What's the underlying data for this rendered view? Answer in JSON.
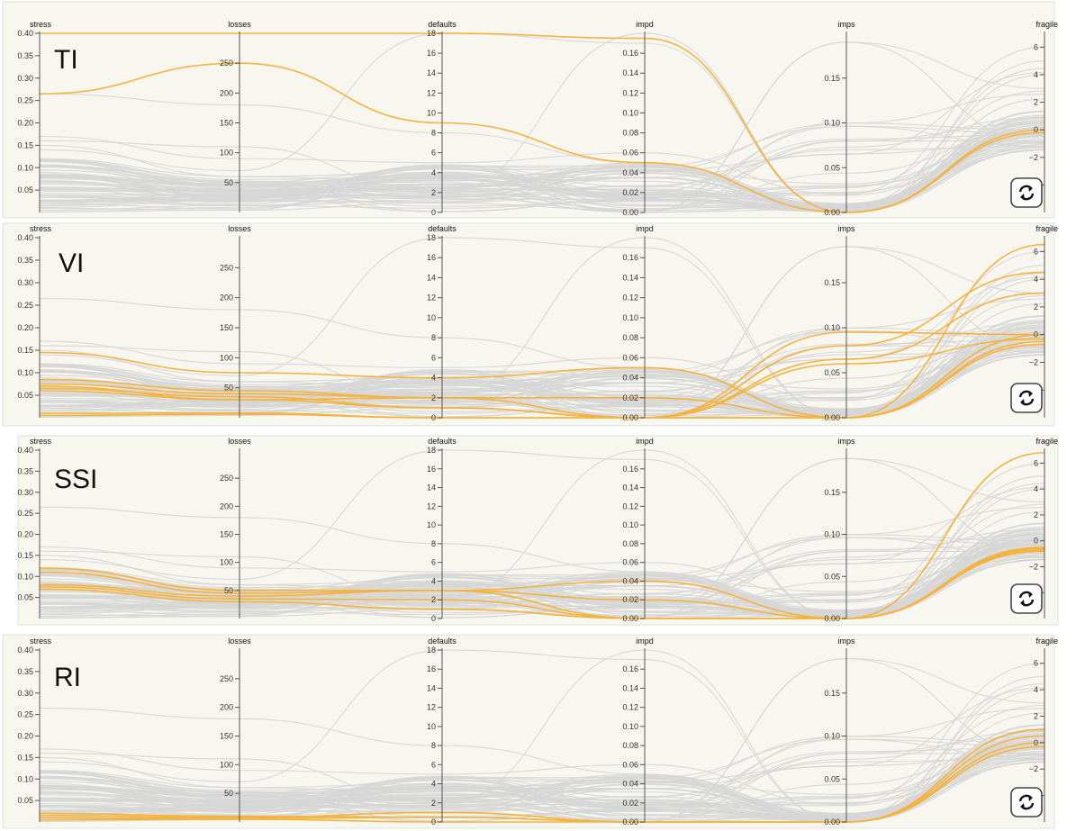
{
  "axes": {
    "stress": {
      "label": "stress",
      "domain": [
        0,
        0.4
      ],
      "ticks": [
        0.05,
        0.1,
        0.15,
        0.2,
        0.25,
        0.3,
        0.35,
        0.4
      ],
      "tick_labels": [
        "0.05",
        "0.10",
        "0.15",
        "0.20",
        "0.25",
        "0.30",
        "0.35",
        "0.40"
      ]
    },
    "losses": {
      "label": "losses",
      "domain": [
        0,
        300
      ],
      "ticks": [
        50,
        100,
        150,
        200,
        250
      ],
      "tick_labels": [
        "50",
        "100",
        "150",
        "200",
        "250"
      ]
    },
    "defaults": {
      "label": "defaults",
      "domain": [
        0,
        18
      ],
      "ticks": [
        0,
        2,
        4,
        6,
        8,
        10,
        12,
        14,
        16,
        18
      ],
      "tick_labels": [
        "0",
        "2",
        "4",
        "6",
        "8",
        "10",
        "12",
        "14",
        "16",
        "18"
      ]
    },
    "impd": {
      "label": "impd",
      "domain": [
        0,
        0.18
      ],
      "ticks": [
        0,
        0.02,
        0.04,
        0.06,
        0.08,
        0.1,
        0.12,
        0.14,
        0.16
      ],
      "tick_labels": [
        "0.00",
        "0.02",
        "0.04",
        "0.06",
        "0.08",
        "0.10",
        "0.12",
        "0.14",
        "0.16"
      ]
    },
    "imps": {
      "label": "imps",
      "domain": [
        0,
        0.2
      ],
      "ticks": [
        0,
        0.05,
        0.1,
        0.15
      ],
      "tick_labels": [
        "0.00",
        "0.05",
        "0.10",
        "0.15"
      ]
    },
    "fragile": {
      "label": "fragile",
      "domain": [
        -6,
        7
      ],
      "ticks": [
        -4,
        -2,
        0,
        2,
        4,
        6
      ],
      "tick_labels": [
        "−4",
        "−2",
        "0",
        "2",
        "4",
        "6"
      ]
    }
  },
  "colors": {
    "background": "#f7f6ef",
    "context_line": "#d6d6d6",
    "highlight_line": "#f5b33e",
    "axis": "#555555",
    "refresh_button_border": "#444444"
  },
  "chart_data": [
    {
      "type": "parallel-coordinates",
      "panel_label": "TI",
      "dimensions": [
        "stress",
        "losses",
        "defaults",
        "impd",
        "imps",
        "fragile"
      ],
      "highlighted_series": [
        {
          "values": [
            0.4,
            300,
            18,
            0.175,
            0.0,
            0.0
          ]
        },
        {
          "values": [
            0.265,
            250,
            9,
            0.05,
            0.0,
            -0.2
          ]
        }
      ],
      "refresh_icon": "refresh-icon"
    },
    {
      "type": "parallel-coordinates",
      "panel_label": "VI",
      "dimensions": [
        "stress",
        "losses",
        "defaults",
        "impd",
        "imps",
        "fragile"
      ],
      "highlighted_series": [
        {
          "values": [
            0.145,
            75,
            4,
            0.05,
            0.0,
            0.0
          ]
        },
        {
          "values": [
            0.085,
            45,
            2,
            0.02,
            0.0,
            6.5
          ]
        },
        {
          "values": [
            0.075,
            40,
            2,
            0.0,
            0.095,
            0.0
          ]
        },
        {
          "values": [
            0.07,
            30,
            2,
            0.0,
            0.08,
            4.5
          ]
        },
        {
          "values": [
            0.065,
            35,
            1,
            0.0,
            0.065,
            3.0
          ]
        },
        {
          "values": [
            0.06,
            30,
            1,
            0.0,
            0.06,
            -0.3
          ]
        },
        {
          "values": [
            0.01,
            8,
            0,
            0.0,
            0.0,
            -0.5
          ]
        },
        {
          "values": [
            0.005,
            6,
            0,
            0.0,
            0.0,
            -0.7
          ]
        }
      ],
      "refresh_icon": "refresh-icon"
    },
    {
      "type": "parallel-coordinates",
      "panel_label": "SSI",
      "dimensions": [
        "stress",
        "losses",
        "defaults",
        "impd",
        "imps",
        "fragile"
      ],
      "highlighted_series": [
        {
          "values": [
            0.12,
            50,
            3,
            0.04,
            0.0,
            6.8
          ]
        },
        {
          "values": [
            0.11,
            45,
            3,
            0.02,
            0.0,
            -0.5
          ]
        },
        {
          "values": [
            0.08,
            40,
            3,
            0.0,
            0.0,
            -0.6
          ]
        },
        {
          "values": [
            0.075,
            35,
            2,
            0.0,
            0.0,
            -0.7
          ]
        },
        {
          "values": [
            0.07,
            30,
            1,
            0.0,
            0.0,
            -0.8
          ]
        }
      ],
      "refresh_icon": "refresh-icon"
    },
    {
      "type": "parallel-coordinates",
      "panel_label": "RI",
      "dimensions": [
        "stress",
        "losses",
        "defaults",
        "impd",
        "imps",
        "fragile"
      ],
      "highlighted_series": [
        {
          "values": [
            0.02,
            10,
            0.5,
            0.0,
            0.0,
            1.0
          ]
        },
        {
          "values": [
            0.015,
            8,
            1.0,
            0.0,
            0.0,
            0.5
          ]
        },
        {
          "values": [
            0.01,
            6,
            0.5,
            0.0,
            0.0,
            0.0
          ]
        },
        {
          "values": [
            0.005,
            5,
            0.0,
            0.0,
            0.0,
            -0.3
          ]
        }
      ],
      "refresh_icon": "refresh-icon"
    }
  ]
}
